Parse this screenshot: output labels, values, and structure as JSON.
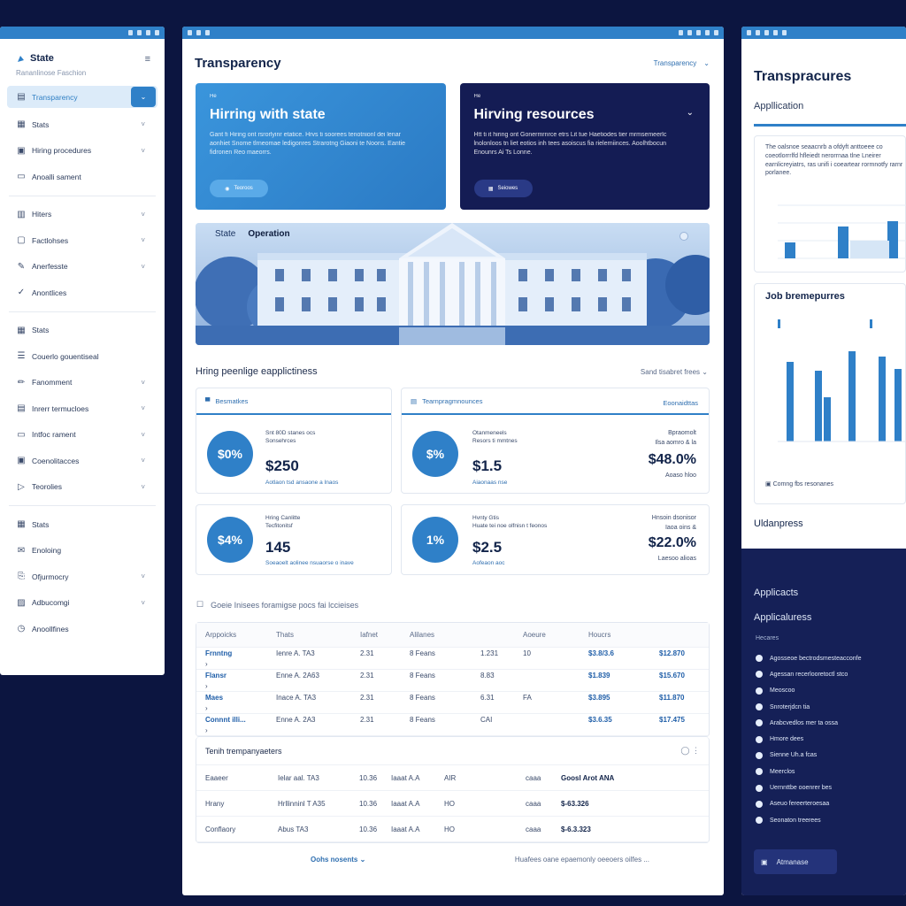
{
  "sidebar": {
    "brand": "State",
    "subtitle": "Rananlinose Faschion",
    "sections": [
      [
        {
          "label": "Transparency",
          "icon": "document-icon",
          "active": true
        },
        {
          "label": "Stats",
          "icon": "grid-icon",
          "chev": true
        },
        {
          "label": "Hiring procedures",
          "icon": "clipboard-icon",
          "chev": true
        },
        {
          "label": "Anoalli sament",
          "icon": "folder-icon",
          "chev": false
        }
      ],
      [
        {
          "label": "Hiters",
          "icon": "calendar-icon",
          "chev": true
        },
        {
          "label": "Factlohses",
          "icon": "file-icon",
          "chev": true
        },
        {
          "label": "Anerfesste",
          "icon": "edit-icon",
          "chev": true
        },
        {
          "label": "Anontlices",
          "icon": "check-icon",
          "chev": false
        }
      ],
      [
        {
          "label": "Stats",
          "icon": "grid-icon",
          "chev": false
        },
        {
          "label": "Couerlo gouentiseal",
          "icon": "list-icon",
          "chev": false
        },
        {
          "label": "Fanomment",
          "icon": "pencil-icon",
          "chev": true
        },
        {
          "label": "Inrerr termucloes",
          "icon": "table-icon",
          "chev": true
        },
        {
          "label": "Intfoc rament",
          "icon": "inbox-icon",
          "chev": true
        },
        {
          "label": "Coenolitacces",
          "icon": "window-icon",
          "chev": true
        },
        {
          "label": "Teorolies",
          "icon": "tag-icon",
          "chev": true
        }
      ],
      [
        {
          "label": "Stats",
          "icon": "grid-icon",
          "chev": false
        },
        {
          "label": "Enoloing",
          "icon": "mail-icon",
          "chev": false
        },
        {
          "label": "Ofjurmocry",
          "icon": "clip-icon",
          "chev": true
        },
        {
          "label": "Adbucomgi",
          "icon": "map-icon",
          "chev": true
        },
        {
          "label": "Anoollfines",
          "icon": "clock-icon",
          "chev": false
        }
      ]
    ]
  },
  "main": {
    "title": "Transparency",
    "dropdown": "Transparency",
    "hero_left": {
      "tag": "He",
      "title": "Hirring with state",
      "body": "Gant fi Hiring ont rsrorlyinr etatice. Hrvs ti soorees tenotnionl dei lenar aonhiet Snome tlrneomae ledigonres Strarotng Giaoni te Noons. Eantie fidronen Reo maeorrs.",
      "button": "Teoroos"
    },
    "hero_right": {
      "tag": "He",
      "title": "Hirving resources",
      "body": "Htt ti it hiring ont Gonermrnrce etrs Lit tue Haetiodes tier mrmsemeerlc lnolonloos tn liet eotios inh tees asoiscus fia rielerniinces. Aoolhtbocun Enounrs Ai Ts Lonne.",
      "button": "Seiowes"
    },
    "banner": {
      "l1": "State",
      "l2": "Operation"
    },
    "section_title": "Hring peenlige eapplictiness",
    "section_dd": "Sand tisabret frees",
    "cards": [
      {
        "head": "Besmatkes",
        "circle": "$0%",
        "label": "Snt 80D stanes ocs\nSonsehrces",
        "value": "$250",
        "foot": "Aotlaon tsd ansaone a Inaos"
      },
      {
        "head": "Tearnpragmnounces",
        "headRight": "Eoonaidttas",
        "circle": "$%",
        "label": "Otanmeneels\nResors ti mmtnes",
        "value": "$1.5",
        "foot": "Aiaonaas nse",
        "rlabel": "Bpraomolt\nIlsa aomro & la",
        "pct": "$48.0%",
        "rfoot": "Aoaso hloo"
      },
      {
        "label": "Hring Canlitte\nTecfitonitsf",
        "circle": "$4%",
        "value": "145",
        "foot": "Soeaoelt aolinee nsuaorse o inave"
      },
      {
        "label": "Hvnty Gtis\nHuate tei noe olfnisn t feonos",
        "circle": "1%",
        "value": "$2.5",
        "foot": "Aofeaon aoc",
        "rlabel": "Hnsoin dsonisor\nIaoa oins &",
        "pct": "$22.0%",
        "rfoot": "Laesoo alioas"
      }
    ],
    "table_caption": "Goeie Inisees foramigse pocs fai lccieises",
    "table_headers": [
      "Arppoicks",
      "Thats",
      "Iafnet",
      "Alilanes",
      "",
      "Aoeure",
      "Houcrs",
      ""
    ],
    "table_rows": [
      [
        "Frnntng",
        "Ienre A. TA3",
        "2.31",
        "8 Feans",
        "1.231",
        "10",
        "$3.8/3.6",
        "$12.870"
      ],
      [
        "Flansr",
        "Enne A. 2A63",
        "2.31",
        "8 Feans",
        "8.83",
        "",
        "$1.839",
        "$15.670"
      ],
      [
        "Maes",
        "Inace A. TA3",
        "2.31",
        "8 Feans",
        "6.31",
        "FA",
        "$3.895",
        "$11.870"
      ],
      [
        "Connnt illi...",
        "Enne A. 2A3",
        "2.31",
        "8 Feans",
        "CAI",
        "",
        "$3.6.35",
        "$17.475"
      ]
    ],
    "table2_title": "Tenih trempanyaeters",
    "table2_rows": [
      [
        "Eaaeer",
        "Ielar aal. TA3",
        "10.36",
        "Iaaat A.A",
        "AIR",
        "caaa",
        "Goosl Arot ANA"
      ],
      [
        "Hrany",
        "Hrllinninl T A35",
        "10.36",
        "Iaaat A.A",
        "HO",
        "caaa",
        "$-63.326"
      ],
      [
        "Conflaory",
        "Abus TA3",
        "10.36",
        "Iaaat A.A",
        "HO",
        "caaa",
        "$-6.3.323"
      ]
    ],
    "footer_left": "Oohs nosents",
    "footer_right": "Huafees oane epaemonly oeeoers oilfes ..."
  },
  "right": {
    "title": "Transpracures",
    "subtitle": "Appllication",
    "card_text": "The oalsnoe seaacnrb a ofdyft anttoeee co coeotlorrrlfd hfleiedt nerorrnaa tlne Lneirer earnlicreyiatrs, ras unifi i coeartear rormnotfy rarnr porlanee.",
    "card2_title": "Job bremepurres",
    "card2_foot": "Comng fbs resonanes",
    "label_bottom": "Uldanpress",
    "dark": {
      "h1": "Applicacts",
      "h2": "Applicaluress",
      "caption": "Hecares",
      "items": [
        "Agosseoe bectrodsmesteacconfe",
        "Agessan recerlooretoctl stco",
        "Meoscoo",
        "Snroterjdcn tia",
        "Arabcvedlos mer ta ossa",
        "Hmore dees",
        "Sienne Uh.a fcas",
        "Meerclos",
        "Uernnttbe ooenrer bes",
        "Aseuo fereerteroesaa",
        "Seonaton treerees"
      ],
      "button": "Atmanase"
    }
  },
  "colors": {
    "accent": "#2f80c8",
    "dark": "#141c54",
    "background": "#0c1540"
  }
}
